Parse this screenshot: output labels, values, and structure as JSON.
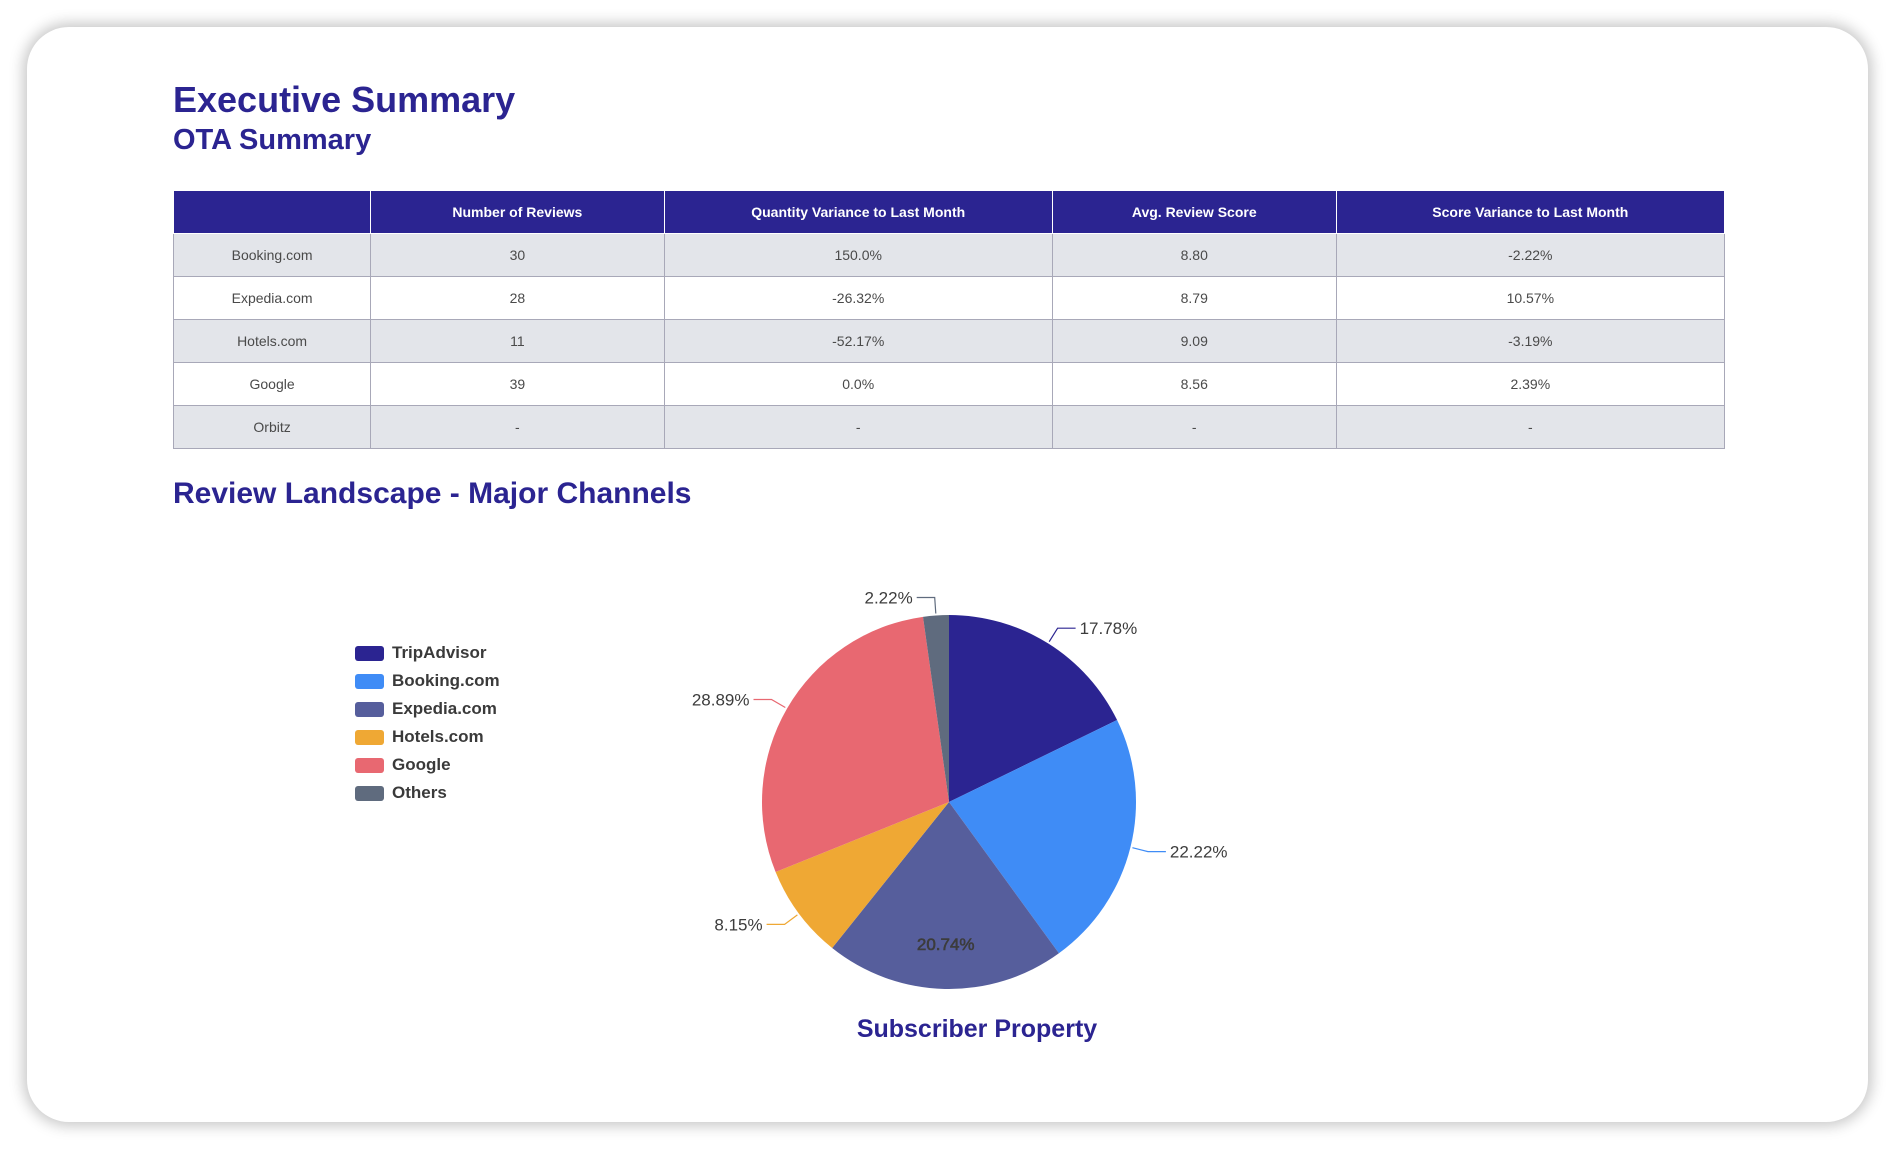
{
  "page": {
    "title": "Executive Summary",
    "subtitle": "OTA Summary",
    "section_title": "Review Landscape - Major Channels"
  },
  "ota_table": {
    "headers": [
      "",
      "Number of Reviews",
      "Quantity Variance to Last Month",
      "Avg. Review Score",
      "Score Variance to Last Month"
    ],
    "rows": [
      [
        "Booking.com",
        "30",
        "150.0%",
        "8.80",
        "-2.22%"
      ],
      [
        "Expedia.com",
        "28",
        "-26.32%",
        "8.79",
        "10.57%"
      ],
      [
        "Hotels.com",
        "11",
        "-52.17%",
        "9.09",
        "-3.19%"
      ],
      [
        "Google",
        "39",
        "0.0%",
        "8.56",
        "2.39%"
      ],
      [
        "Orbitz",
        "-",
        "-",
        "-",
        "-"
      ]
    ]
  },
  "chart_data": {
    "type": "pie",
    "title": "Subscriber Property",
    "legend_position": "left",
    "slices": [
      {
        "name": "TripAdvisor",
        "value": 17.78,
        "label": "17.78%",
        "color": "#2b2491"
      },
      {
        "name": "Booking.com",
        "value": 22.22,
        "label": "22.22%",
        "color": "#3f8cf6"
      },
      {
        "name": "Expedia.com",
        "value": 20.74,
        "label": "20.74%",
        "color": "#565e9c"
      },
      {
        "name": "Hotels.com",
        "value": 8.15,
        "label": "8.15%",
        "color": "#efa834"
      },
      {
        "name": "Google",
        "value": 28.89,
        "label": "28.89%",
        "color": "#e86871"
      },
      {
        "name": "Others",
        "value": 2.22,
        "label": "2.22%",
        "color": "#5f6b7e"
      }
    ]
  }
}
